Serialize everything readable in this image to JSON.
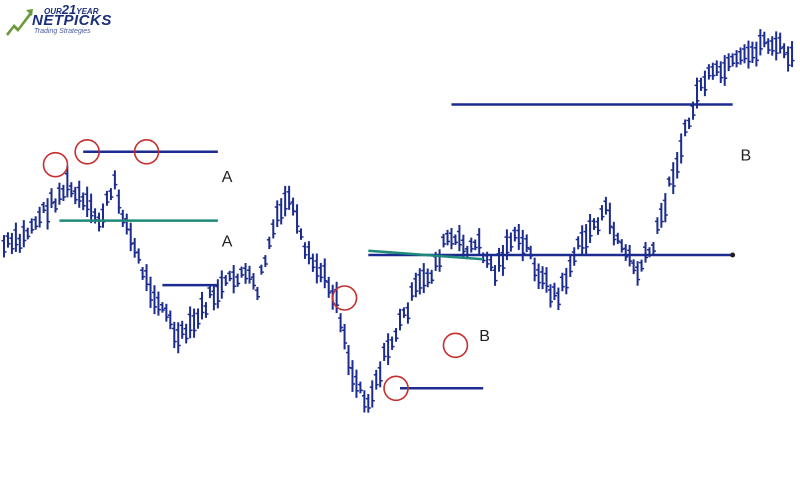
{
  "logo": {
    "badge_prefix": "OUR",
    "badge_num": "21",
    "badge_suffix": "YEAR",
    "brand": "NETPICKS",
    "tagline": "Trading Strategies"
  },
  "chart_data": {
    "type": "line",
    "title": "",
    "xlabel": "",
    "ylabel": "",
    "xlim": [
      0,
      200
    ],
    "ylim": [
      0,
      100
    ],
    "grid": false,
    "colors": {
      "price": "#1b2b8f",
      "level": "#1b2b8f",
      "support": "#1f8a78",
      "circle": "#c43030"
    },
    "series": [
      {
        "x": [
          0,
          4,
          8,
          12,
          16,
          20,
          24,
          28,
          32,
          36,
          40,
          44,
          48,
          52,
          56,
          60,
          64,
          68,
          72,
          76,
          80,
          84,
          88,
          92,
          96,
          100,
          104,
          108,
          112,
          116,
          120,
          124,
          128,
          132,
          136,
          140,
          144,
          148,
          152,
          156,
          160,
          164,
          168,
          172,
          176,
          180,
          184,
          188,
          192,
          196,
          200
        ],
        "values": [
          52,
          53,
          58,
          62,
          66,
          62,
          58,
          66,
          54,
          44,
          38,
          30,
          34,
          40,
          43,
          46,
          42,
          56,
          64,
          50,
          46,
          40,
          22,
          16,
          26,
          34,
          42,
          46,
          54,
          52,
          52,
          46,
          54,
          52,
          44,
          40,
          50,
          56,
          60,
          52,
          46,
          52,
          66,
          78,
          90,
          92,
          94,
          96,
          100,
          98,
          95
        ]
      }
    ],
    "horizontal_levels": [
      {
        "y": 74,
        "from": 20,
        "to": 54
      },
      {
        "y": 43,
        "from": 40,
        "to": 54
      },
      {
        "y": 58,
        "from": 14,
        "to": 54
      },
      {
        "y": 50,
        "from": 92,
        "to": 184
      },
      {
        "y": 85,
        "from": 113,
        "to": 184
      },
      {
        "y": 19,
        "from": 100,
        "to": 121
      }
    ],
    "annotations": [
      {
        "text": "A",
        "x": 55,
        "y": 67
      },
      {
        "text": "A",
        "x": 55,
        "y": 52
      },
      {
        "text": "B",
        "x": 120,
        "y": 30
      },
      {
        "text": "B",
        "x": 186,
        "y": 72
      }
    ],
    "circled_points": [
      {
        "x": 13,
        "y": 71
      },
      {
        "x": 21,
        "y": 74
      },
      {
        "x": 36,
        "y": 74
      },
      {
        "x": 86,
        "y": 40
      },
      {
        "x": 114,
        "y": 29
      },
      {
        "x": 99,
        "y": 19
      }
    ]
  }
}
